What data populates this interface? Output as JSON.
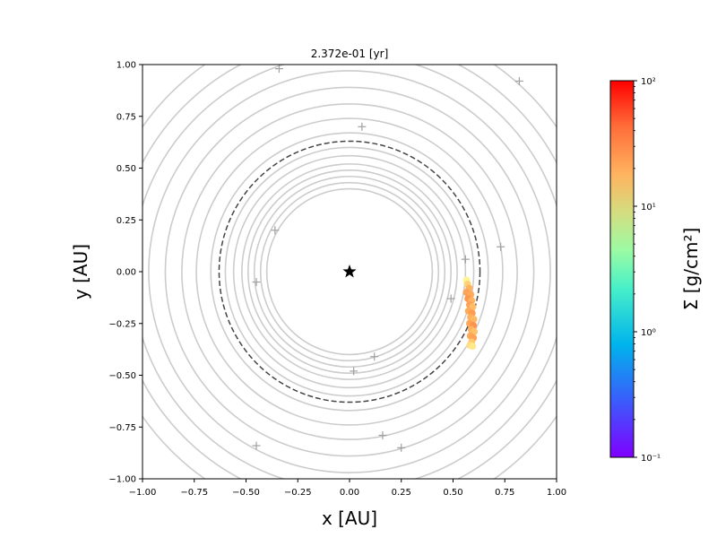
{
  "chart_data": {
    "type": "scatter",
    "title": "2.372e-01 [yr]",
    "xlabel": "x [AU]",
    "ylabel": "y [AU]",
    "xlim": [
      -1.0,
      1.0
    ],
    "ylim": [
      -1.0,
      1.0
    ],
    "xticks": [
      -1.0,
      -0.75,
      -0.5,
      -0.25,
      0.0,
      0.25,
      0.5,
      0.75,
      1.0
    ],
    "yticks": [
      -1.0,
      -0.75,
      -0.5,
      -0.25,
      0.0,
      0.25,
      0.5,
      0.75,
      1.0
    ],
    "xtick_labels": [
      "−1.00",
      "−0.75",
      "−0.50",
      "−0.25",
      "0.00",
      "0.25",
      "0.50",
      "0.75",
      "1.00"
    ],
    "ytick_labels": [
      "−1.00",
      "−0.75",
      "−0.50",
      "−0.25",
      "0.00",
      "0.25",
      "0.50",
      "0.75",
      "1.00"
    ],
    "grid": false,
    "star": {
      "x": 0.0,
      "y": 0.0,
      "marker": "star",
      "color": "#000000"
    },
    "orbit_circle_radii": [
      0.4,
      0.43,
      0.46,
      0.49,
      0.52,
      0.56,
      0.6,
      0.67,
      0.74,
      0.81,
      0.89,
      0.97,
      1.05,
      1.13,
      1.22
    ],
    "orbit_color": "#cccccc",
    "dashed_circle": {
      "radius": 0.63,
      "color": "#444444"
    },
    "grey_markers": [
      {
        "x": -0.34,
        "y": 0.98
      },
      {
        "x": 0.82,
        "y": 0.92
      },
      {
        "x": 0.06,
        "y": 0.7
      },
      {
        "x": -0.36,
        "y": 0.2
      },
      {
        "x": 0.73,
        "y": 0.12
      },
      {
        "x": 0.56,
        "y": 0.06
      },
      {
        "x": -0.45,
        "y": -0.05
      },
      {
        "x": 0.49,
        "y": -0.13
      },
      {
        "x": 0.12,
        "y": -0.41
      },
      {
        "x": 0.02,
        "y": -0.48
      },
      {
        "x": -0.45,
        "y": -0.84
      },
      {
        "x": 0.16,
        "y": -0.79
      },
      {
        "x": 0.25,
        "y": -0.85
      }
    ],
    "grey_marker_color": "#a0a0a0",
    "gas_points": [
      {
        "x": 0.565,
        "y": -0.04,
        "sigma": 6
      },
      {
        "x": 0.57,
        "y": -0.06,
        "sigma": 12
      },
      {
        "x": 0.578,
        "y": -0.08,
        "sigma": 18
      },
      {
        "x": 0.565,
        "y": -0.1,
        "sigma": 22
      },
      {
        "x": 0.585,
        "y": -0.11,
        "sigma": 20
      },
      {
        "x": 0.572,
        "y": -0.13,
        "sigma": 25
      },
      {
        "x": 0.59,
        "y": -0.14,
        "sigma": 18
      },
      {
        "x": 0.58,
        "y": -0.16,
        "sigma": 22
      },
      {
        "x": 0.595,
        "y": -0.17,
        "sigma": 16
      },
      {
        "x": 0.575,
        "y": -0.19,
        "sigma": 20
      },
      {
        "x": 0.592,
        "y": -0.2,
        "sigma": 24
      },
      {
        "x": 0.585,
        "y": -0.22,
        "sigma": 19
      },
      {
        "x": 0.6,
        "y": -0.23,
        "sigma": 17
      },
      {
        "x": 0.58,
        "y": -0.25,
        "sigma": 21
      },
      {
        "x": 0.598,
        "y": -0.26,
        "sigma": 26
      },
      {
        "x": 0.588,
        "y": -0.28,
        "sigma": 18
      },
      {
        "x": 0.602,
        "y": -0.29,
        "sigma": 15
      },
      {
        "x": 0.584,
        "y": -0.31,
        "sigma": 20
      },
      {
        "x": 0.598,
        "y": -0.32,
        "sigma": 22
      },
      {
        "x": 0.59,
        "y": -0.34,
        "sigma": 14
      },
      {
        "x": 0.582,
        "y": -0.355,
        "sigma": 10
      },
      {
        "x": 0.594,
        "y": -0.36,
        "sigma": 8
      }
    ],
    "colorbar": {
      "label": "Σ [g/cm²]",
      "scale": "log",
      "colormap": "rainbow",
      "range": [
        0.1,
        100
      ],
      "ticks": [
        0.1,
        1,
        10,
        100
      ],
      "tick_labels": [
        "10⁻¹",
        "10⁰",
        "10¹",
        "10²"
      ]
    }
  }
}
